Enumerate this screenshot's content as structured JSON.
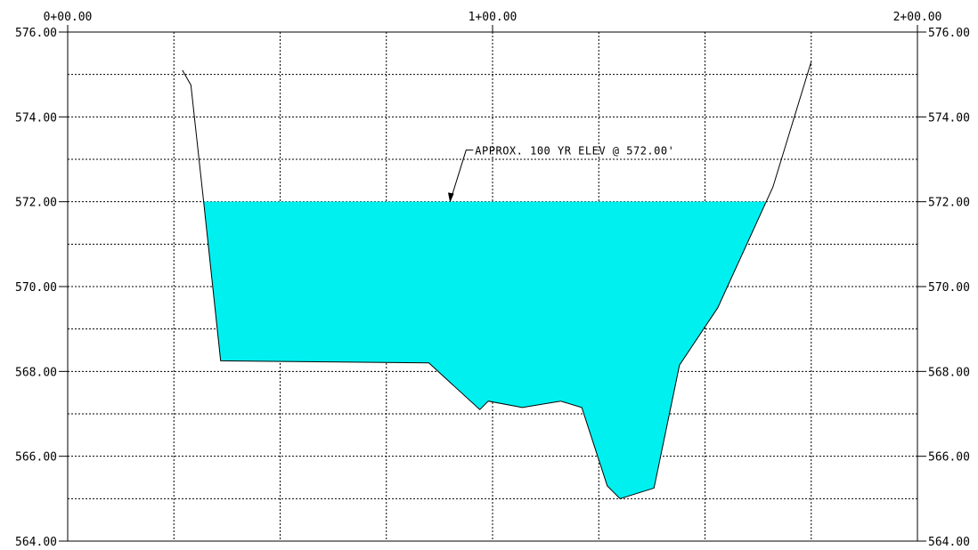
{
  "chart_data": {
    "type": "area",
    "title": "",
    "xlabel": "",
    "ylabel": "",
    "xlim": [
      0,
      200
    ],
    "ylim": [
      564,
      576
    ],
    "x_ticks": [
      {
        "value": 0,
        "label": "0+00.00"
      },
      {
        "value": 100,
        "label": "1+00.00"
      },
      {
        "value": 200,
        "label": "2+00.00"
      }
    ],
    "y_ticks": [
      {
        "value": 576,
        "label": "576.00"
      },
      {
        "value": 574,
        "label": "574.00"
      },
      {
        "value": 572,
        "label": "572.00"
      },
      {
        "value": 570,
        "label": "570.00"
      },
      {
        "value": 568,
        "label": "568.00"
      },
      {
        "value": 566,
        "label": "566.00"
      },
      {
        "value": 564,
        "label": "564.00"
      }
    ],
    "grid_x_step": 25,
    "grid_y_step": 1,
    "grid": true,
    "ground_profile": {
      "x": [
        27,
        29,
        32,
        36,
        85,
        97,
        99,
        107,
        116,
        121,
        127,
        130,
        138,
        144,
        147,
        153,
        166,
        175
      ],
      "y": [
        575.1,
        574.75,
        572.0,
        568.25,
        568.2,
        567.1,
        567.3,
        567.15,
        567.3,
        567.15,
        565.3,
        565.0,
        565.25,
        568.15,
        568.6,
        569.5,
        572.35,
        575.3
      ]
    },
    "water_surface_elevation": 572.0,
    "fill_color": "#00f0f0",
    "callout": {
      "text": "APPROX. 100 YR ELEV @ 572.00'",
      "target_x": 90,
      "target_y": 572.0
    }
  }
}
